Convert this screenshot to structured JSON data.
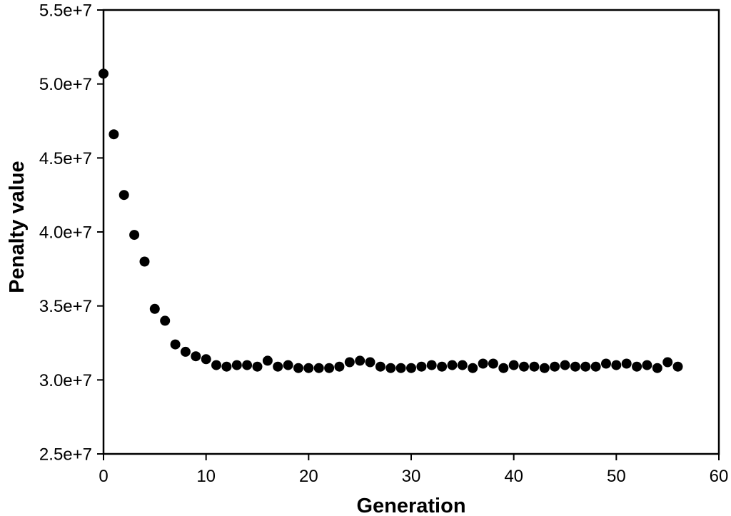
{
  "figure": {
    "background_color": "#ffffff"
  },
  "chart_data": {
    "type": "scatter",
    "title": "",
    "xlabel": "Generation",
    "ylabel": "Penalty value",
    "xlim": [
      0,
      60
    ],
    "ylim": [
      25000000,
      55000000
    ],
    "grid": false,
    "legend": null,
    "frame": "box",
    "tick_direction": "out",
    "marker": {
      "shape": "circle",
      "color": "#000000",
      "radius_px": 7
    },
    "axis_color": "#000000",
    "x_ticks": [
      {
        "value": 0,
        "label": "0"
      },
      {
        "value": 10,
        "label": "10"
      },
      {
        "value": 20,
        "label": "20"
      },
      {
        "value": 30,
        "label": "30"
      },
      {
        "value": 40,
        "label": "40"
      },
      {
        "value": 50,
        "label": "50"
      },
      {
        "value": 60,
        "label": "60"
      }
    ],
    "y_ticks": [
      {
        "value": 55000000,
        "label": "5.5e+7"
      },
      {
        "value": 50000000,
        "label": "5.0e+7"
      },
      {
        "value": 45000000,
        "label": "4.5e+7"
      },
      {
        "value": 40000000,
        "label": "4.0e+7"
      },
      {
        "value": 35000000,
        "label": "3.5e+7"
      },
      {
        "value": 30000000,
        "label": "3.0e+7"
      },
      {
        "value": 25000000,
        "label": "2.5e+7"
      }
    ],
    "x": [
      0,
      1,
      2,
      3,
      4,
      5,
      6,
      7,
      8,
      9,
      10,
      11,
      12,
      13,
      14,
      15,
      16,
      17,
      18,
      19,
      20,
      21,
      22,
      23,
      24,
      25,
      26,
      27,
      28,
      29,
      30,
      31,
      32,
      33,
      34,
      35,
      36,
      37,
      38,
      39,
      40,
      41,
      42,
      43,
      44,
      45,
      46,
      47,
      48,
      49,
      50,
      51,
      52,
      53,
      54,
      55,
      56
    ],
    "y": [
      50700000,
      46600000,
      42500000,
      39800000,
      38000000,
      34800000,
      34000000,
      32400000,
      31900000,
      31600000,
      31400000,
      31000000,
      30900000,
      31000000,
      31000000,
      30900000,
      31300000,
      30900000,
      31000000,
      30800000,
      30800000,
      30800000,
      30800000,
      30900000,
      31200000,
      31300000,
      31200000,
      30900000,
      30800000,
      30800000,
      30800000,
      30900000,
      31000000,
      30900000,
      31000000,
      31000000,
      30800000,
      31100000,
      31100000,
      30800000,
      31000000,
      30900000,
      30900000,
      30800000,
      30900000,
      31000000,
      30900000,
      30900000,
      30900000,
      31100000,
      31000000,
      31100000,
      30900000,
      31000000,
      30800000,
      31200000,
      30900000
    ]
  }
}
